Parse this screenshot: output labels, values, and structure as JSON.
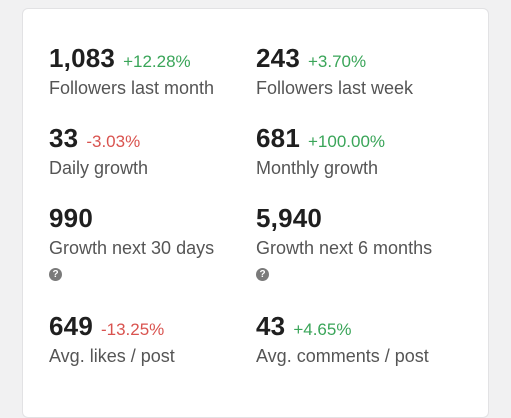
{
  "stats": [
    {
      "value": "1,083",
      "change": "+12.28%",
      "trend": "up",
      "label": "Followers last month",
      "help": false
    },
    {
      "value": "243",
      "change": "+3.70%",
      "trend": "up",
      "label": "Followers last week",
      "help": false
    },
    {
      "value": "33",
      "change": "-3.03%",
      "trend": "down",
      "label": "Daily growth",
      "help": false
    },
    {
      "value": "681",
      "change": "+100.00%",
      "trend": "up",
      "label": "Monthly growth",
      "help": false
    },
    {
      "value": "990",
      "change": "",
      "trend": "",
      "label": "Growth next 30 days",
      "help": true,
      "help_icon": "question-circle-icon"
    },
    {
      "value": "5,940",
      "change": "",
      "trend": "",
      "label": "Growth next 6 months",
      "help": true,
      "help_icon": "question-circle-icon"
    },
    {
      "value": "649",
      "change": "-13.25%",
      "trend": "down",
      "label": "Avg. likes / post",
      "help": false
    },
    {
      "value": "43",
      "change": "+4.65%",
      "trend": "up",
      "label": "Avg. comments / post",
      "help": false
    }
  ],
  "colors": {
    "positive": "#3aa559",
    "negative": "#d9534f"
  }
}
